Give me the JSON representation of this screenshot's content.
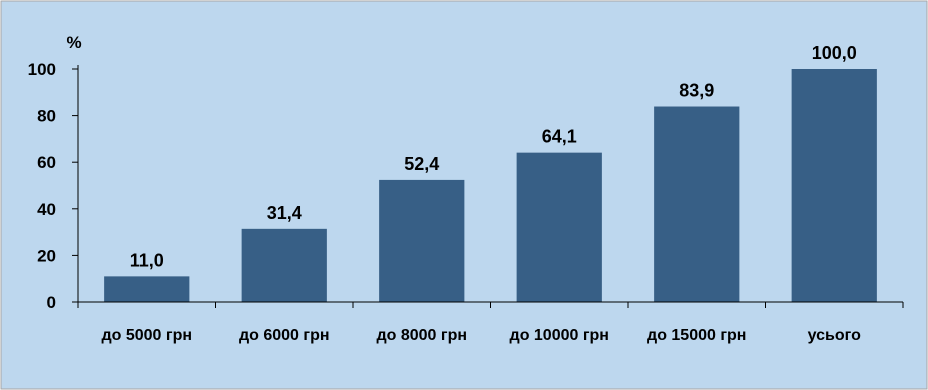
{
  "chart_data": {
    "type": "bar",
    "unit_label": "%",
    "categories": [
      "до 5000 грн",
      "до 6000 грн",
      "до 8000 грн",
      "до 10000 грн",
      "до 15000 грн",
      "усього"
    ],
    "values": [
      11.0,
      31.4,
      52.4,
      64.1,
      83.9,
      100.0
    ],
    "value_labels": [
      "11,0",
      "31,4",
      "52,4",
      "64,1",
      "83,9",
      "100,0"
    ],
    "ylim": [
      0,
      100
    ],
    "yticks": [
      0,
      20,
      40,
      60,
      80,
      100
    ],
    "ytick_labels": [
      "0",
      "20",
      "40",
      "60",
      "80",
      "100"
    ],
    "grid": false,
    "legend": "none",
    "colors": {
      "background": "#bdd7ee",
      "bar": "#375f86",
      "axis": "#000000",
      "text": "#000000",
      "frame": "#a6a6a6"
    }
  }
}
